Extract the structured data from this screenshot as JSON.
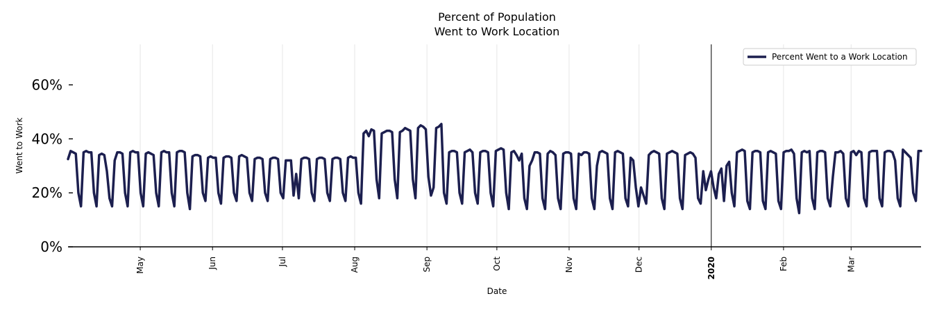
{
  "chart_data": {
    "type": "line",
    "title": [
      "Percent of Population",
      "Went to Work Location"
    ],
    "xlabel": "Date",
    "ylabel": "Went to Work",
    "ylim": [
      0,
      75
    ],
    "yticks": [
      0,
      20,
      40,
      60
    ],
    "ytick_labels": [
      "0%",
      "20%",
      "40%",
      "60%"
    ],
    "x_range_days": [
      0,
      366
    ],
    "xticks": [
      {
        "label": "May",
        "day": 31,
        "bold": false
      },
      {
        "label": "Jun",
        "day": 62,
        "bold": false
      },
      {
        "label": "Jul",
        "day": 92,
        "bold": false
      },
      {
        "label": "Aug",
        "day": 123,
        "bold": false
      },
      {
        "label": "Sep",
        "day": 154,
        "bold": false
      },
      {
        "label": "Oct",
        "day": 184,
        "bold": false
      },
      {
        "label": "Nov",
        "day": 215,
        "bold": false
      },
      {
        "label": "Dec",
        "day": 245,
        "bold": false
      },
      {
        "label": "2020",
        "day": 276,
        "bold": true
      },
      {
        "label": "Feb",
        "day": 307,
        "bold": false
      },
      {
        "label": "Mar",
        "day": 336,
        "bold": false
      }
    ],
    "vline_day": 276,
    "grid": "vertical",
    "legend_position": "top-right",
    "colors": {
      "line": "#1c1f4f",
      "grid": "#e6e6e6",
      "axis": "#000000"
    },
    "series": [
      {
        "name": "Percent Went to a Work Location",
        "start_date": "2019-04-01",
        "values": [
          32.5,
          35.5,
          35,
          34.5,
          20,
          15,
          35,
          35.5,
          35,
          35,
          20,
          15,
          34,
          34.5,
          34,
          28,
          18,
          15,
          32,
          35,
          35,
          34.5,
          20,
          15,
          35,
          35.5,
          35,
          35,
          20,
          15,
          34.5,
          35,
          34.5,
          34,
          20,
          15,
          35,
          35.5,
          35,
          35,
          20,
          15,
          35,
          35.5,
          35.5,
          35,
          20,
          14,
          33.5,
          34,
          34,
          33.5,
          20,
          17,
          33,
          33.5,
          33,
          33,
          20,
          16,
          33,
          33.5,
          33.5,
          33,
          20,
          17,
          33.5,
          34,
          33.5,
          33,
          20,
          17,
          32.5,
          33,
          33,
          32.5,
          20,
          17,
          32.5,
          33,
          33,
          32.5,
          20,
          18,
          32,
          32,
          32,
          19,
          27,
          18,
          32.5,
          33,
          33,
          32.5,
          20,
          17,
          32.5,
          33,
          33,
          32.5,
          20,
          17,
          32.5,
          33,
          33,
          32.5,
          20,
          17,
          33,
          33.5,
          33,
          33,
          20,
          16,
          42,
          43,
          41,
          43.5,
          43,
          25,
          18,
          42,
          42.5,
          43,
          43,
          42.5,
          25,
          18,
          42.5,
          43,
          44,
          43.5,
          43,
          25,
          18,
          44,
          45,
          44.5,
          43.5,
          26,
          19,
          22,
          44,
          44.5,
          45.5,
          20,
          16,
          35,
          35.5,
          35.5,
          35,
          20,
          16,
          35,
          35.5,
          36,
          35,
          20,
          16,
          35,
          35.5,
          35.5,
          35,
          20,
          15,
          35.5,
          36,
          36.5,
          36,
          20,
          14,
          35,
          35.5,
          34,
          32,
          34.5,
          18,
          14,
          30,
          32,
          35,
          35,
          34.5,
          18,
          14,
          34.5,
          35.5,
          35,
          34,
          18,
          14,
          34.5,
          35,
          35,
          34.5,
          18,
          14,
          34.5,
          34,
          35,
          35,
          34.5,
          18,
          14,
          30,
          35,
          35.5,
          35,
          34.5,
          18,
          14,
          35,
          35.5,
          35,
          34.5,
          18,
          15,
          33,
          32,
          22,
          15,
          22,
          19,
          16,
          34,
          35,
          35.5,
          35,
          34.5,
          18,
          14,
          34.5,
          35,
          35.5,
          35,
          34.5,
          18,
          14,
          34,
          34.5,
          35,
          34.5,
          33,
          18,
          16,
          28,
          21,
          25,
          28,
          22,
          18,
          27,
          29,
          17,
          30,
          31.5,
          20,
          15,
          35,
          35.5,
          36,
          35.5,
          17,
          14,
          35,
          35.5,
          35.5,
          35,
          17,
          14,
          35,
          35.5,
          35,
          34.5,
          17,
          14,
          35,
          35.5,
          35.5,
          36,
          34.5,
          18,
          12.5,
          35,
          35.5,
          35,
          35.5,
          18,
          14,
          35,
          35.5,
          35.5,
          35,
          18,
          15,
          26,
          35,
          35,
          35.5,
          34.5,
          18,
          15,
          35,
          35.5,
          34,
          35.5,
          35,
          18,
          15,
          35,
          35.5,
          35.5,
          35.5,
          18,
          15,
          35,
          35.5,
          35.5,
          35,
          32,
          18,
          15,
          36,
          35,
          34,
          33,
          20,
          17,
          35.5,
          35.5
        ]
      }
    ]
  }
}
